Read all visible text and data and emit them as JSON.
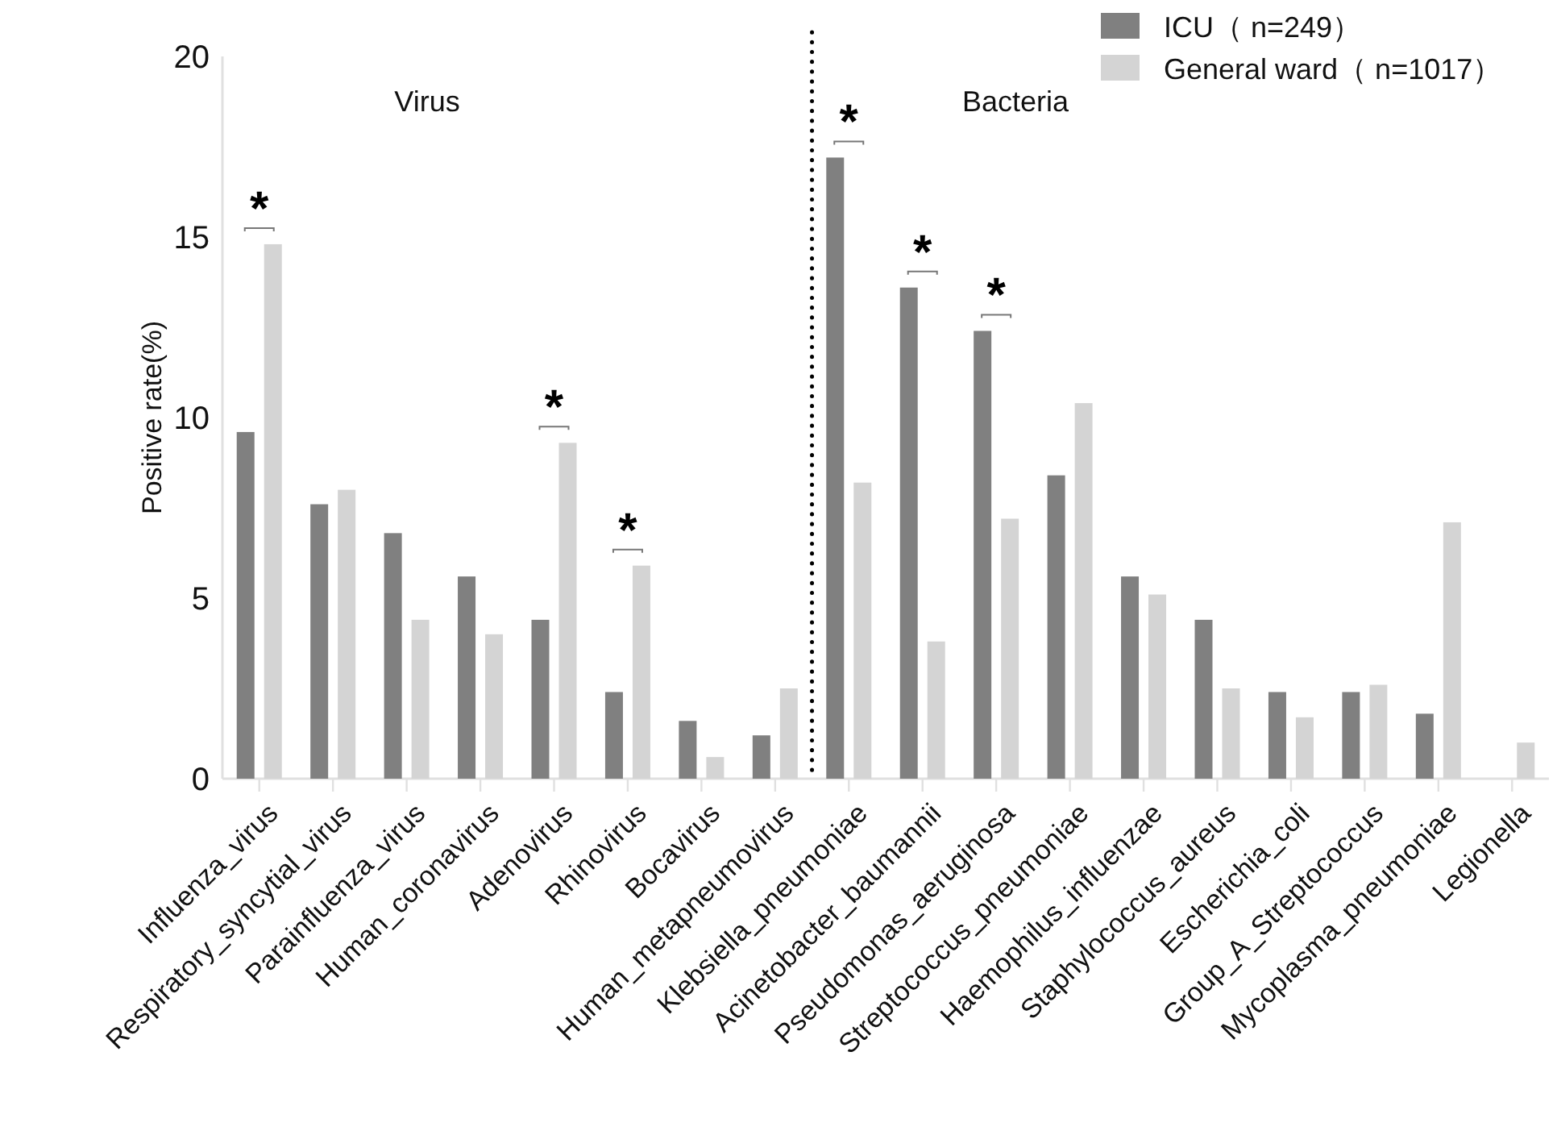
{
  "chart_data": {
    "type": "bar",
    "ylabel": "Positive rate(%)",
    "categories": [
      "Influenza_virus",
      "Respiratory_syncytial_virus",
      "Parainfluenza_virus",
      "Human_coronavirus",
      "Adenovirus",
      "Rhinovirus",
      "Bocavirus",
      "Human_metapneumovirus",
      "Klebsiella_pneumoniae",
      "Acinetobacter_baumannii",
      "Pseudomonas_aeruginosa",
      "Streptococcus_pneumoniae",
      "Haemophilus_influenzae",
      "Staphylococcus_aureus",
      "Escherichia_coli",
      "Group_A_Streptococcus",
      "Mycoplasma_pneumoniae",
      "Legionella"
    ],
    "series": [
      {
        "name": "ICU（ n=249）",
        "color": "#808080",
        "values": [
          9.6,
          7.6,
          6.8,
          5.6,
          4.4,
          2.4,
          1.6,
          1.2,
          17.2,
          13.6,
          12.4,
          8.4,
          5.6,
          4.4,
          2.4,
          2.4,
          1.8,
          0
        ]
      },
      {
        "name": "General ward（ n=1017）",
        "color": "#d4d4d4",
        "values": [
          14.8,
          8.0,
          4.4,
          4.0,
          9.3,
          5.9,
          0.6,
          2.5,
          8.2,
          3.8,
          7.2,
          10.4,
          5.1,
          2.5,
          1.7,
          2.6,
          7.1,
          1.0
        ]
      }
    ],
    "ylim": [
      0,
      20
    ],
    "yticks": [
      0,
      5,
      10,
      15,
      20
    ],
    "legend": "top right",
    "annotations": [
      "Virus",
      "Bacteria",
      {
        "text": "*",
        "x": "Influenza_virus",
        "y": 14.8
      },
      {
        "text": "*",
        "x": "Adenovirus",
        "y": 9.3
      },
      {
        "text": "*",
        "x": "Rhinovirus",
        "y": 5.9
      },
      {
        "text": "*",
        "x": "Klebsiella_pneumoniae",
        "y": 17.2
      },
      {
        "text": "*",
        "x": "Acinetobacter_baumannii",
        "y": 13.6
      },
      {
        "text": "*",
        "x": "Pseudomonas_aeruginosa",
        "y": 12.4
      }
    ]
  }
}
